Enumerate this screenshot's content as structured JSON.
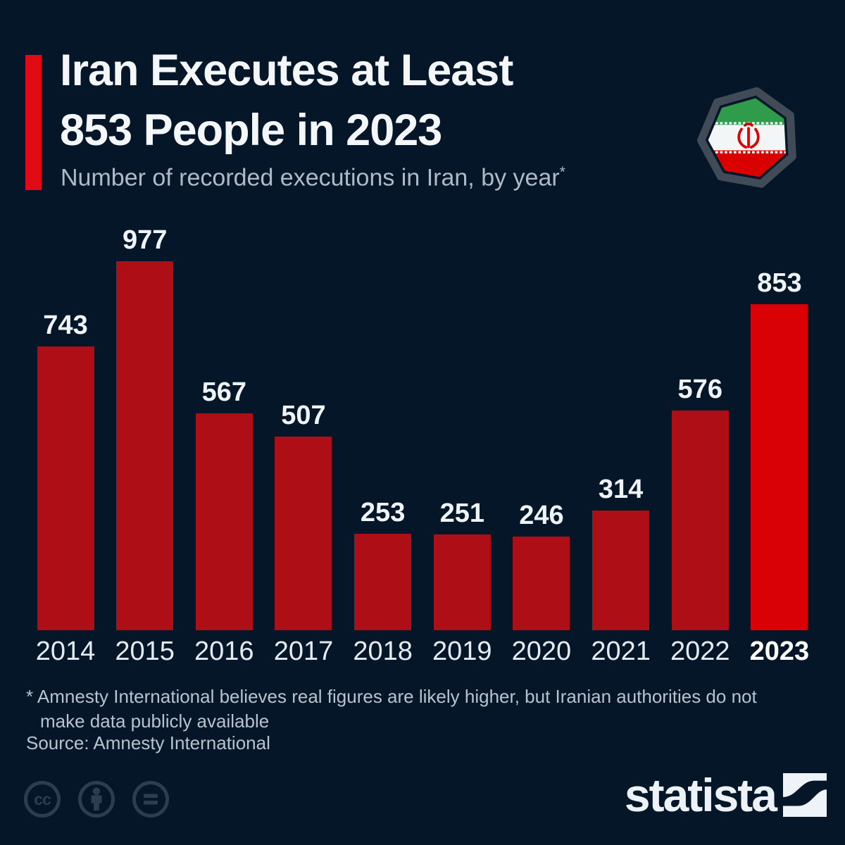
{
  "colors": {
    "background": "#051628",
    "accent_red": "#e00a14",
    "bar": "#ae0e16",
    "bar_highlight": "#d90006",
    "title_text": "#f4f7f9",
    "subtitle_text": "#aebbc6",
    "muted_text": "#b7c3cd",
    "license_icon": "#2b3d4f",
    "flag_green": "#2e9c4b",
    "flag_white": "#f2f6f7",
    "flag_red": "#d90000"
  },
  "header": {
    "title_line1": "Iran Executes at Least",
    "title_line2": "853 People in 2023",
    "subtitle": "Number of recorded executions in Iran, by year",
    "footnote_marker": "*"
  },
  "chart_data": {
    "type": "bar",
    "title": "Iran Executes at Least 853 People in 2023",
    "subtitle": "Number of recorded executions in Iran, by year",
    "categories": [
      "2014",
      "2015",
      "2016",
      "2017",
      "2018",
      "2019",
      "2020",
      "2021",
      "2022",
      "2023"
    ],
    "values": [
      743,
      977,
      567,
      507,
      253,
      251,
      246,
      314,
      576,
      853
    ],
    "highlight_category": "2023",
    "xlabel": "",
    "ylabel": "",
    "ylim": [
      0,
      977
    ],
    "grid": false,
    "value_labels": true,
    "legend": false
  },
  "footnote": {
    "line1": "* Amnesty International believes real figures are likely higher, but Iranian authorities do not",
    "line2": "make data publicly available"
  },
  "source": "Source: Amnesty International",
  "branding": {
    "logo_text": "statista"
  }
}
